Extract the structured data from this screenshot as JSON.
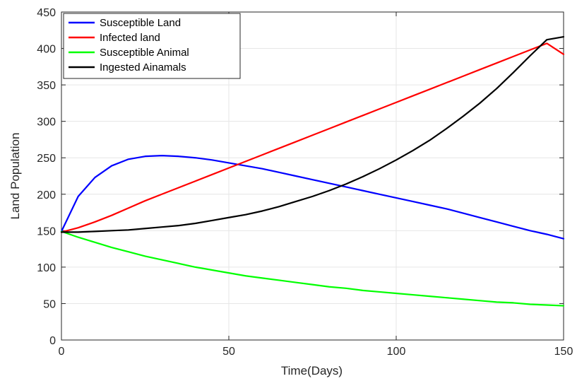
{
  "chart_data": {
    "type": "line",
    "title": "",
    "xlabel": "Time(Days)",
    "ylabel": "Land Population",
    "xlim": [
      0,
      150
    ],
    "ylim": [
      0,
      450
    ],
    "grid": true,
    "legend_position": "top-left",
    "x_ticks": [
      0,
      50,
      100,
      150
    ],
    "y_ticks": [
      0,
      50,
      100,
      150,
      200,
      250,
      300,
      350,
      400,
      450
    ],
    "x": [
      0,
      5,
      10,
      15,
      20,
      25,
      30,
      35,
      40,
      45,
      50,
      55,
      60,
      65,
      70,
      75,
      80,
      85,
      90,
      95,
      100,
      105,
      110,
      115,
      120,
      125,
      130,
      135,
      140,
      145,
      150
    ],
    "series": [
      {
        "name": "Susceptible Land",
        "color": "#0000ff",
        "values": [
          149,
          197,
          223,
          239,
          248,
          252,
          253,
          252,
          250,
          247,
          243,
          239,
          235,
          230,
          225,
          220,
          215,
          210,
          205,
          200,
          195,
          190,
          185,
          180,
          174,
          168,
          162,
          156,
          150,
          145,
          139
        ]
      },
      {
        "name": "Infected land",
        "color": "#ff0000",
        "values": [
          148,
          154,
          162,
          171,
          181,
          191,
          200,
          209,
          218,
          227,
          236,
          245,
          254,
          263,
          272,
          281,
          290,
          299,
          308,
          317,
          326,
          335,
          344,
          353,
          362,
          371,
          380,
          389,
          398,
          407,
          392
        ]
      },
      {
        "name": "Susceptible Animal",
        "color": "#00ff00",
        "values": [
          149,
          141,
          134,
          127,
          121,
          115,
          110,
          105,
          100,
          96,
          92,
          88,
          85,
          82,
          79,
          76,
          73,
          71,
          68,
          66,
          64,
          62,
          60,
          58,
          56,
          54,
          52,
          51,
          49,
          48,
          47
        ]
      },
      {
        "name": "Ingested Ainamals",
        "color": "#000000",
        "values": [
          148,
          148,
          149,
          150,
          151,
          153,
          155,
          157,
          160,
          164,
          168,
          172,
          177,
          183,
          190,
          197,
          205,
          214,
          224,
          235,
          247,
          260,
          274,
          290,
          307,
          325,
          345,
          367,
          390,
          412,
          416
        ]
      }
    ]
  }
}
